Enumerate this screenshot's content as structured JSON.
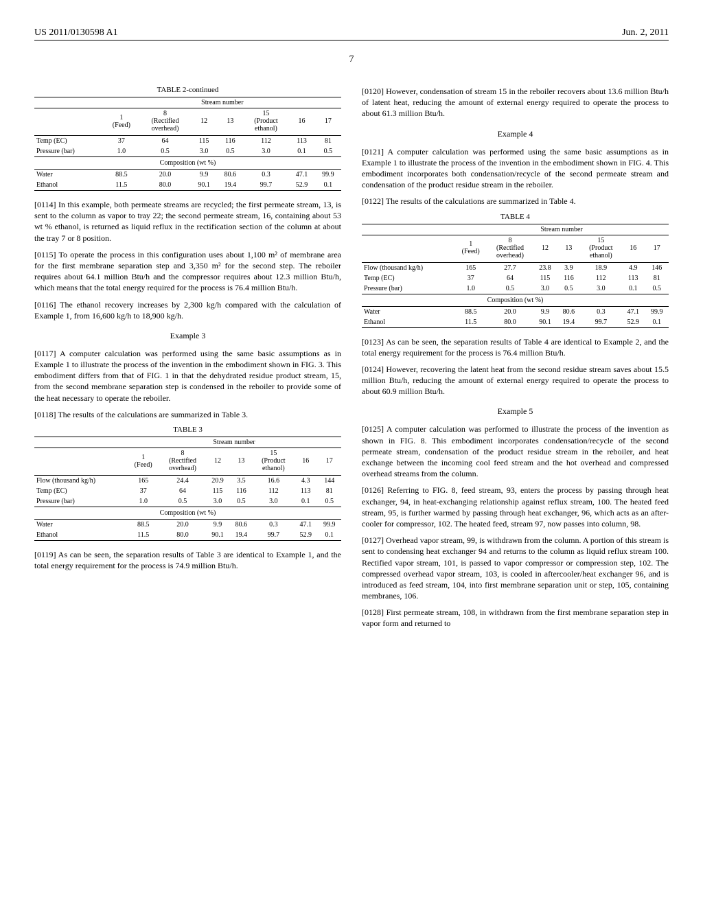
{
  "header": {
    "left": "US 2011/0130598 A1",
    "right": "Jun. 2, 2011",
    "page": "7"
  },
  "table2": {
    "title": "TABLE 2-continued",
    "stream_header": "Stream number",
    "columns": [
      "",
      "1 (Feed)",
      "8 (Rectified overhead)",
      "12",
      "13",
      "15 (Product ethanol)",
      "16",
      "17"
    ],
    "rows": [
      {
        "label": "Temp (EC)",
        "vals": [
          "37",
          "64",
          "115",
          "116",
          "112",
          "113",
          "81"
        ]
      },
      {
        "label": "Pressure (bar)",
        "vals": [
          "1.0",
          "0.5",
          "3.0",
          "0.5",
          "3.0",
          "0.1",
          "0.5"
        ]
      }
    ],
    "comp_label": "Composition (wt %)",
    "comp_rows": [
      {
        "label": "Water",
        "vals": [
          "88.5",
          "20.0",
          "9.9",
          "80.6",
          "0.3",
          "47.1",
          "99.9"
        ]
      },
      {
        "label": "Ethanol",
        "vals": [
          "11.5",
          "80.0",
          "90.1",
          "19.4",
          "99.7",
          "52.9",
          "0.1"
        ]
      }
    ]
  },
  "para0114": "[0114]  In this example, both permeate streams are recycled; the first permeate stream, 13, is sent to the column as vapor to tray 22; the second permeate stream, 16, containing about 53 wt % ethanol, is returned as liquid reflux in the rectification section of the column at about the tray 7 or 8 position.",
  "para0115": "[0115]  To operate the process in this configuration uses about 1,100 m² of membrane area for the first membrane separation step and 3,350 m² for the second step. The reboiler requires about 64.1 million Btu/h and the compressor requires about 12.3 million Btu/h, which means that the total energy required for the process is 76.4 million Btu/h.",
  "para0116": "[0116]  The ethanol recovery increases by 2,300 kg/h compared with the calculation of Example 1, from 16,600 kg/h to 18,900 kg/h.",
  "example3": "Example 3",
  "para0117": "[0117]  A computer calculation was performed using the same basic assumptions as in Example 1 to illustrate the process of the invention in the embodiment shown in FIG. 3. This embodiment differs from that of FIG. 1 in that the dehydrated residue product stream, 15, from the second membrane separation step is condensed in the reboiler to provide some of the heat necessary to operate the reboiler.",
  "para0118": "[0118]  The results of the calculations are summarized in Table 3.",
  "table3": {
    "title": "TABLE 3",
    "stream_header": "Stream number",
    "columns": [
      "",
      "1 (Feed)",
      "8 (Rectified overhead)",
      "12",
      "13",
      "15 (Product ethanol)",
      "16",
      "17"
    ],
    "rows": [
      {
        "label": "Flow (thousand kg/h)",
        "vals": [
          "165",
          "24.4",
          "20.9",
          "3.5",
          "16.6",
          "4.3",
          "144"
        ]
      },
      {
        "label": "Temp (EC)",
        "vals": [
          "37",
          "64",
          "115",
          "116",
          "112",
          "113",
          "81"
        ]
      },
      {
        "label": "Pressure (bar)",
        "vals": [
          "1.0",
          "0.5",
          "3.0",
          "0.5",
          "3.0",
          "0.1",
          "0.5"
        ]
      }
    ],
    "comp_label": "Composition (wt %)",
    "comp_rows": [
      {
        "label": "Water",
        "vals": [
          "88.5",
          "20.0",
          "9.9",
          "80.6",
          "0.3",
          "47.1",
          "99.9"
        ]
      },
      {
        "label": "Ethanol",
        "vals": [
          "11.5",
          "80.0",
          "90.1",
          "19.4",
          "99.7",
          "52.9",
          "0.1"
        ]
      }
    ]
  },
  "para0119": "[0119]  As can be seen, the separation results of Table 3 are identical to Example 1, and the total energy requirement for the process is 74.9 million Btu/h.",
  "para0120": "[0120]  However, condensation of stream 15 in the reboiler recovers about 13.6 million Btu/h of latent heat, reducing the amount of external energy required to operate the process to about 61.3 million Btu/h.",
  "example4": "Example 4",
  "para0121": "[0121]  A computer calculation was performed using the same basic assumptions as in Example 1 to illustrate the process of the invention in the embodiment shown in FIG. 4. This embodiment incorporates both condensation/recycle of the second permeate stream and condensation of the product residue stream in the reboiler.",
  "para0122": "[0122]  The results of the calculations are summarized in Table 4.",
  "table4": {
    "title": "TABLE 4",
    "stream_header": "Stream number",
    "columns": [
      "",
      "1 (Feed)",
      "8 (Rectified overhead)",
      "12",
      "13",
      "15 (Product ethanol)",
      "16",
      "17"
    ],
    "rows": [
      {
        "label": "Flow (thousand kg/h)",
        "vals": [
          "165",
          "27.7",
          "23.8",
          "3.9",
          "18.9",
          "4.9",
          "146"
        ]
      },
      {
        "label": "Temp (EC)",
        "vals": [
          "37",
          "64",
          "115",
          "116",
          "112",
          "113",
          "81"
        ]
      },
      {
        "label": "Pressure (bar)",
        "vals": [
          "1.0",
          "0.5",
          "3.0",
          "0.5",
          "3.0",
          "0.1",
          "0.5"
        ]
      }
    ],
    "comp_label": "Composition (wt %)",
    "comp_rows": [
      {
        "label": "Water",
        "vals": [
          "88.5",
          "20.0",
          "9.9",
          "80.6",
          "0.3",
          "47.1",
          "99.9"
        ]
      },
      {
        "label": "Ethanol",
        "vals": [
          "11.5",
          "80.0",
          "90.1",
          "19.4",
          "99.7",
          "52.9",
          "0.1"
        ]
      }
    ]
  },
  "para0123": "[0123]  As can be seen, the separation results of Table 4 are identical to Example 2, and the total energy requirement for the process is 76.4 million Btu/h.",
  "para0124": "[0124]  However, recovering the latent heat from the second residue stream saves about 15.5 million Btu/h, reducing the amount of external energy required to operate the process to about 60.9 million Btu/h.",
  "example5": "Example 5",
  "para0125": "[0125]  A computer calculation was performed to illustrate the process of the invention as shown in FIG. 8. This embodiment incorporates condensation/recycle of the second permeate stream, condensation of the product residue stream in the reboiler, and heat exchange between the incoming cool feed stream and the hot overhead and compressed overhead streams from the column.",
  "para0126": "[0126]  Referring to FIG. 8, feed stream, 93, enters the process by passing through heat exchanger, 94, in heat-exchanging relationship against reflux stream, 100. The heated feed stream, 95, is further warmed by passing through heat exchanger, 96, which acts as an after-cooler for compressor, 102. The heated feed, stream 97, now passes into column, 98.",
  "para0127": "[0127]  Overhead vapor stream, 99, is withdrawn from the column. A portion of this stream is sent to condensing heat exchanger 94 and returns to the column as liquid reflux stream 100. Rectified vapor stream, 101, is passed to vapor compressor or compression step, 102. The compressed overhead vapor stream, 103, is cooled in aftercooler/heat exchanger 96, and is introduced as feed stream, 104, into first membrane separation unit or step, 105, containing membranes, 106.",
  "para0128": "[0128]  First permeate stream, 108, in withdrawn from the first membrane separation step in vapor form and returned to"
}
